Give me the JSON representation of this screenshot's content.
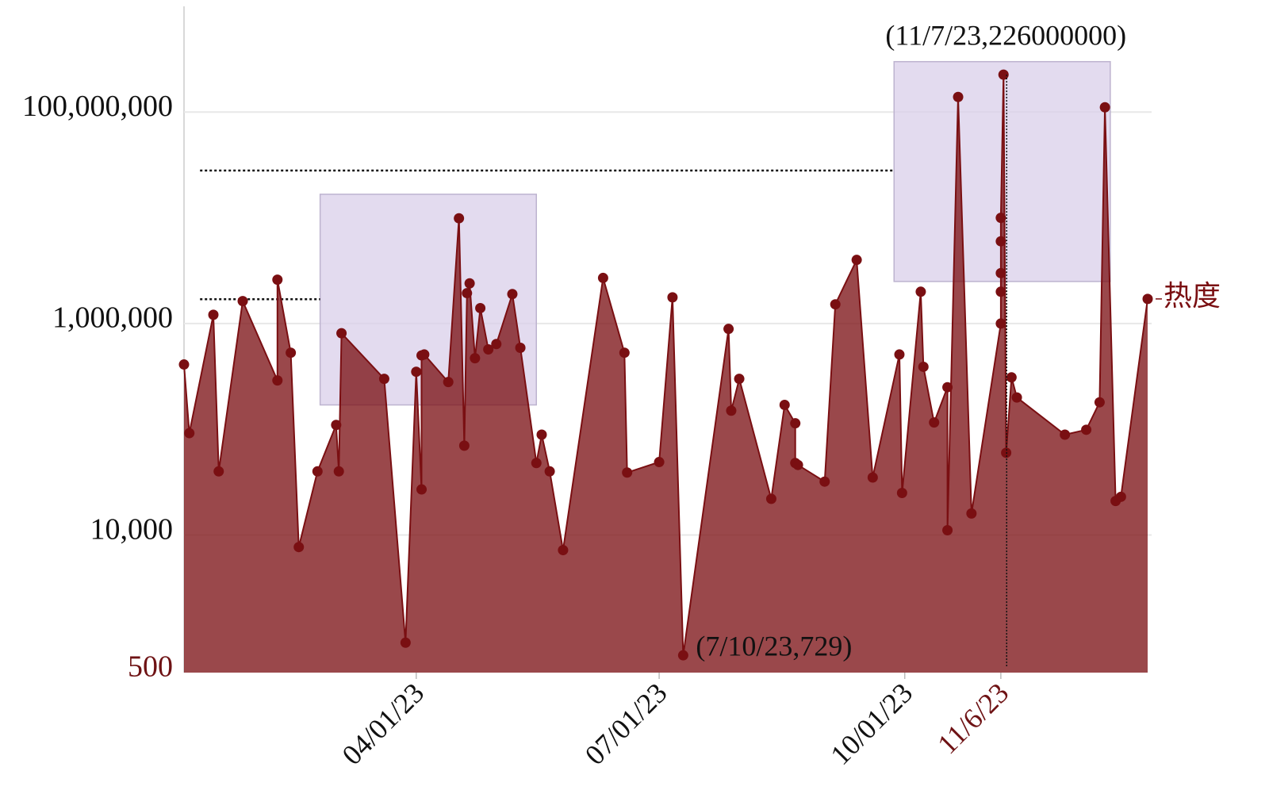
{
  "chart_data": {
    "type": "area",
    "log_y": true,
    "grid": true,
    "xlim": [
      "2023-01-04",
      "2023-12-31"
    ],
    "ylim": [
      500,
      1000000000
    ],
    "xticks": [
      {
        "value": "2023-04-01",
        "label": "04/01/23"
      },
      {
        "value": "2023-07-01",
        "label": "07/01/23"
      },
      {
        "value": "2023-10-01",
        "label": "10/01/23"
      },
      {
        "value": "2023-11-06",
        "label": "11/6/23"
      }
    ],
    "yticks": [
      500,
      {
        "value": 10000,
        "label": "10,000"
      },
      {
        "value": 1000000,
        "label": "1,000,000"
      },
      {
        "value": 100000000,
        "label": "100,000,000"
      }
    ],
    "accent_color": "#6e1214",
    "accent_ticks": {
      "x": [
        "2023-11-06"
      ],
      "y": [
        500
      ]
    },
    "series": [
      {
        "name": "热度",
        "color": "#7a0f12",
        "x": [
          "2023-01-04",
          "2023-01-06",
          "2023-01-15",
          "2023-01-17",
          "2023-01-26",
          "2023-02-08",
          "2023-02-08",
          "2023-02-13",
          "2023-02-16",
          "2023-02-23",
          "2023-03-02",
          "2023-03-03",
          "2023-03-04",
          "2023-03-20",
          "2023-03-28",
          "2023-04-01",
          "2023-04-03",
          "2023-04-03",
          "2023-04-04",
          "2023-04-13",
          "2023-04-17",
          "2023-04-19",
          "2023-04-20",
          "2023-04-21",
          "2023-04-23",
          "2023-04-25",
          "2023-04-28",
          "2023-05-01",
          "2023-05-07",
          "2023-05-10",
          "2023-05-16",
          "2023-05-18",
          "2023-05-21",
          "2023-05-26",
          "2023-06-10",
          "2023-06-18",
          "2023-06-19",
          "2023-07-01",
          "2023-07-06",
          "2023-07-10",
          "2023-07-27",
          "2023-07-28",
          "2023-07-31",
          "2023-08-12",
          "2023-08-17",
          "2023-08-21",
          "2023-08-21",
          "2023-08-22",
          "2023-09-01",
          "2023-09-05",
          "2023-09-13",
          "2023-09-19",
          "2023-09-29",
          "2023-09-30",
          "2023-10-07",
          "2023-10-08",
          "2023-10-12",
          "2023-10-17",
          "2023-10-17",
          "2023-10-21",
          "2023-10-26",
          "2023-11-06",
          "2023-11-06",
          "2023-11-06",
          "2023-11-06",
          "2023-11-06",
          "2023-11-07",
          "2023-11-08",
          "2023-11-10",
          "2023-11-12",
          "2023-11-30",
          "2023-12-08",
          "2023-12-13",
          "2023-12-15",
          "2023-12-19",
          "2023-12-21",
          "2023-12-31"
        ],
        "values": [
          410000,
          92000,
          1210000,
          40000,
          1630000,
          290000,
          2600000,
          530000,
          7700,
          40000,
          110000,
          40000,
          810000,
          300000,
          960,
          350000,
          27000,
          500000,
          510000,
          280000,
          9900000,
          70000,
          1940000,
          2400000,
          470000,
          1400000,
          570000,
          640000,
          1900000,
          590000,
          48000,
          89000,
          40000,
          7200,
          2700000,
          530000,
          39000,
          49000,
          1770000,
          729,
          890000,
          150000,
          300000,
          22000,
          170000,
          114000,
          48000,
          46000,
          32000,
          1520000,
          4000000,
          35000,
          510000,
          25000,
          2000000,
          390000,
          116000,
          250000,
          11100,
          139000000,
          16000,
          1000000,
          2000000,
          3000000,
          6000000,
          10000000,
          226000000,
          60000,
          310000,
          200000,
          89000,
          99000,
          180000,
          111000000,
          21000,
          23000,
          1710000
        ]
      }
    ],
    "highlight_regions": [
      {
        "x": [
          "2023-02-24",
          "2023-05-16"
        ],
        "y": [
          170000,
          16700000
        ]
      },
      {
        "x": [
          "2023-09-27",
          "2023-12-17"
        ],
        "y": [
          2500000,
          300000000
        ]
      }
    ],
    "reference_lines": [
      {
        "value": 1700000,
        "x": [
          "2023-01-10",
          "2023-02-24"
        ]
      },
      {
        "value": 28000000,
        "x": [
          "2023-01-10",
          "2023-09-27"
        ]
      }
    ],
    "annotations": [
      {
        "text": "(11/7/23,226000000)",
        "x": "2023-11-07",
        "y": 226000000,
        "guide": true
      },
      {
        "text": "(7/10/23,729)",
        "x": "2023-07-10",
        "y": 729,
        "guide": false
      }
    ]
  }
}
